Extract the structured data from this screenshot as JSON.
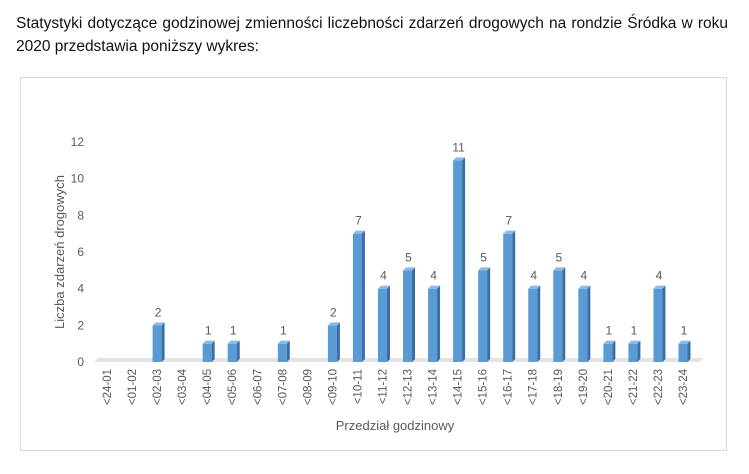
{
  "intro_text": "Statystyki dotyczące godzinowej zmienności liczebności zdarzeń drogowych na rondzie Śródka w roku 2020 przedstawia poniższy wykres:",
  "chart_data": {
    "type": "bar",
    "title": "",
    "xlabel": "Przedział godzinowy",
    "ylabel": "Liczba zdarzeń drogowych",
    "ylim": [
      0,
      12
    ],
    "yticks": [
      0,
      2,
      4,
      6,
      8,
      10,
      12
    ],
    "grid": false,
    "style": "3d-column",
    "bar_color": "#5B9BD5",
    "categories": [
      "<24-01",
      "<01-02",
      "<02-03",
      "<03-04",
      "<04-05",
      "<05-06",
      "<06-07",
      "<07-08",
      "<08-09",
      "<09-10",
      "<10-11",
      "<11-12",
      "<12-13",
      "<13-14",
      "<14-15",
      "<15-16",
      "<16-17",
      "<17-18",
      "<18-19",
      "<19-20",
      "<20-21",
      "<21-22",
      "<22-23",
      "<23-24"
    ],
    "values": [
      0,
      0,
      2,
      0,
      1,
      1,
      0,
      1,
      0,
      2,
      7,
      4,
      5,
      4,
      11,
      5,
      7,
      4,
      5,
      4,
      1,
      1,
      4,
      1
    ],
    "data_labels_shown_for_nonzero": true
  }
}
